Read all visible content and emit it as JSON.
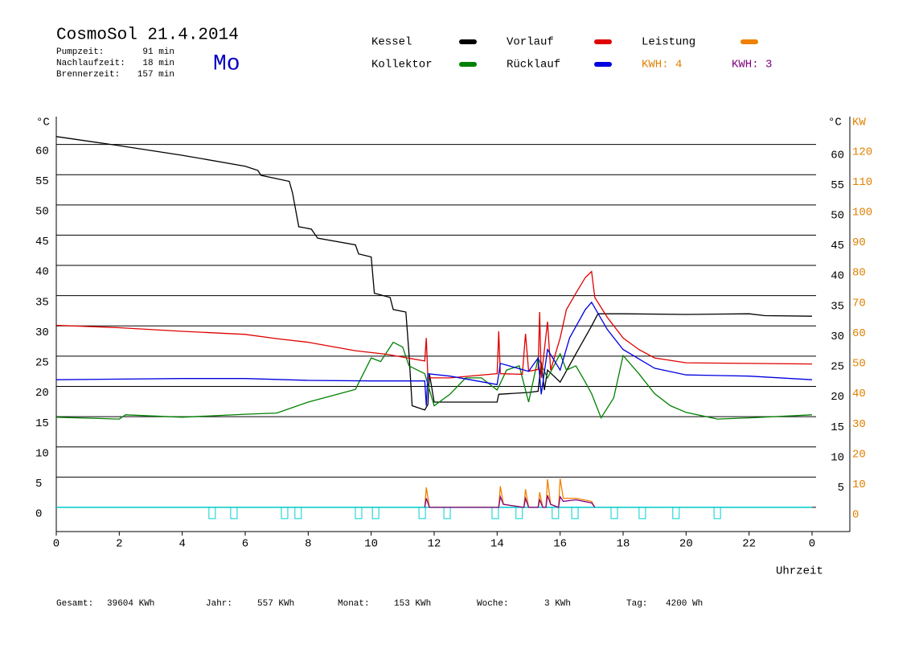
{
  "chart_data": {
    "type": "line",
    "title": "CosmoSol 21.4.2014",
    "weekday": "Mo",
    "stats": [
      {
        "label": "Pumpzeit:",
        "value": "91 min"
      },
      {
        "label": "Nachlaufzeit:",
        "value": "18 min"
      },
      {
        "label": "Brennerzeit:",
        "value": "157 min"
      }
    ],
    "y_label": "°C",
    "y_label_right": "°C",
    "y2_label": "KW",
    "x_label": "Uhrzeit",
    "kwh_labels": [
      {
        "text": "KWH: 4",
        "color": "#e08000"
      },
      {
        "text": "KWH: 3",
        "color": "#800080"
      }
    ],
    "xlim": [
      0,
      25.2
    ],
    "xticks": [
      0,
      2,
      4,
      6,
      8,
      10,
      12,
      14,
      16,
      18,
      20,
      22,
      {
        "value": 24,
        "label": "0"
      }
    ],
    "ylim": [
      -4,
      64.6
    ],
    "yticks": [
      0,
      5,
      10,
      15,
      20,
      25,
      30,
      35,
      40,
      45,
      50,
      55,
      60
    ],
    "yticks_right": [
      5,
      10,
      15,
      20,
      25,
      30,
      35,
      40,
      45,
      50,
      55,
      60
    ],
    "y2lim": [
      -8,
      129.2
    ],
    "y2ticks": [
      0,
      10,
      20,
      30,
      40,
      50,
      60,
      70,
      80,
      90,
      100,
      110,
      120
    ],
    "grid": true,
    "series": [
      {
        "name": "Kessel",
        "color": "#000000",
        "x": [
          0,
          2,
          4,
          6,
          6.4,
          6.5,
          7.4,
          7.5,
          7.7,
          8.1,
          8.3,
          9.5,
          9.6,
          10.0,
          10.1,
          10.6,
          10.7,
          11.1,
          11.2,
          11.3,
          11.7,
          11.8,
          11.85,
          12,
          14,
          14.05,
          15.0,
          15.3,
          15.4,
          15.5,
          15.6,
          16,
          16.5,
          17,
          17.2,
          18,
          20,
          22,
          22.5,
          24
        ],
        "values": [
          61.3,
          59.8,
          58.2,
          56.4,
          55.7,
          54.9,
          53.9,
          52,
          46.4,
          46,
          44.5,
          43.4,
          41.9,
          41.4,
          35.4,
          34.7,
          32.7,
          32.3,
          25.4,
          16.8,
          16.1,
          17,
          22.1,
          17.4,
          17.4,
          18.7,
          19,
          19.2,
          24,
          19.4,
          22.7,
          20.7,
          25.4,
          30,
          32,
          32,
          31.9,
          32,
          31.7,
          31.6
        ]
      },
      {
        "name": "Kollektor",
        "color": "#008000",
        "x": [
          0,
          2,
          2.2,
          4,
          6,
          7,
          8,
          9,
          9.5,
          10,
          10.3,
          10.7,
          11,
          11.2,
          11.7,
          12,
          12.5,
          13,
          13.5,
          14,
          14.3,
          14.7,
          15,
          15.3,
          15.6,
          16,
          16.2,
          16.5,
          16.8,
          17.0,
          17.3,
          17.7,
          18,
          18.5,
          19,
          19.5,
          20,
          21,
          22,
          24
        ],
        "values": [
          14.9,
          14.6,
          15.3,
          14.9,
          15.4,
          15.6,
          17.4,
          18.8,
          19.5,
          24.7,
          24.1,
          27.3,
          26.5,
          23.4,
          22.1,
          16.8,
          18.7,
          21.4,
          21.4,
          19.4,
          22.7,
          23.4,
          17.4,
          24.7,
          21.4,
          25.4,
          22.7,
          23.4,
          20.7,
          18.8,
          14.8,
          18.1,
          25.1,
          22.1,
          18.8,
          16.8,
          15.7,
          14.6,
          14.8,
          15.3
        ]
      },
      {
        "name": "Vorlauf",
        "color": "#e00000",
        "x": [
          0,
          2,
          4,
          6,
          7,
          8,
          9.5,
          10.5,
          11.7,
          11.75,
          11.8,
          12.5,
          14,
          14.05,
          14.1,
          14.8,
          14.9,
          15,
          15.3,
          15.35,
          15.4,
          15.6,
          15.7,
          16,
          16.2,
          16.5,
          16.8,
          17.0,
          17.1,
          17.5,
          18,
          18.5,
          19,
          20,
          22,
          24
        ],
        "values": [
          30.1,
          29.7,
          29.1,
          28.6,
          27.9,
          27.3,
          25.9,
          25.3,
          24.2,
          28,
          21.4,
          21.4,
          22.1,
          29.1,
          22.1,
          22,
          28.7,
          22.5,
          22.8,
          32.3,
          21.4,
          30.7,
          22.7,
          28,
          32.7,
          35.4,
          38,
          39,
          34.7,
          31.4,
          28,
          26.1,
          24.7,
          23.9,
          23.8,
          23.7
        ]
      },
      {
        "name": "Rücklauf",
        "color": "#0000e0",
        "x": [
          0,
          4,
          6,
          8,
          10,
          11.7,
          11.75,
          11.8,
          12.5,
          14,
          14.1,
          15,
          15.3,
          15.4,
          15.6,
          16,
          16.3,
          16.8,
          17,
          17.5,
          18,
          19,
          20,
          22,
          24
        ],
        "values": [
          21.1,
          21.3,
          21.3,
          21,
          20.9,
          20.9,
          16.8,
          22.1,
          21.7,
          20.3,
          23.8,
          22.5,
          24.7,
          18.7,
          26.1,
          22.7,
          28,
          32.7,
          33.9,
          29.4,
          26.1,
          23,
          21.9,
          21.7,
          21.1
        ]
      },
      {
        "name": "Leistung",
        "color": "#f08000",
        "axis": "y2",
        "x": [
          11.7,
          11.75,
          11.85,
          14.05,
          14.1,
          14.2,
          14.85,
          14.9,
          15.0,
          15.3,
          15.35,
          15.45,
          15.55,
          15.6,
          15.7,
          15.95,
          16.0,
          16.1,
          16.5,
          17.0,
          17.1
        ],
        "values": [
          0,
          6.6,
          0,
          0,
          7,
          1,
          0,
          6,
          0,
          0,
          5,
          0,
          0,
          9.3,
          1,
          0,
          9.5,
          3,
          3,
          2,
          0
        ]
      },
      {
        "color": "#800080",
        "axis": "y2",
        "x": [
          11.7,
          11.75,
          11.85,
          14.05,
          14.1,
          14.2,
          14.85,
          14.9,
          15.0,
          15.3,
          15.35,
          15.45,
          15.55,
          15.6,
          15.7,
          15.95,
          16.0,
          16.1,
          16.5,
          17.0,
          17.1
        ],
        "values": [
          0,
          3,
          0,
          0,
          3.5,
          1,
          0,
          3,
          0,
          0,
          2.5,
          0,
          0,
          4,
          1,
          0,
          3.5,
          2,
          2.5,
          1.5,
          0
        ]
      }
    ],
    "event_color": "#00d0d0",
    "events_x": [
      4.95,
      5.64,
      7.25,
      7.68,
      9.6,
      10.14,
      11.62,
      12.41,
      13.94,
      14.7,
      15.85,
      16.47,
      17.72,
      18.61,
      19.68,
      20.99
    ],
    "footer": [
      {
        "label": "Gesamt:",
        "value": "39604 KWh"
      },
      {
        "label": "Jahr:",
        "value": "557 KWh"
      },
      {
        "label": "Monat:",
        "value": "153 KWh"
      },
      {
        "label": "Woche:",
        "value": "3 KWh"
      },
      {
        "label": "Tag:",
        "value": "4200 Wh"
      }
    ]
  }
}
